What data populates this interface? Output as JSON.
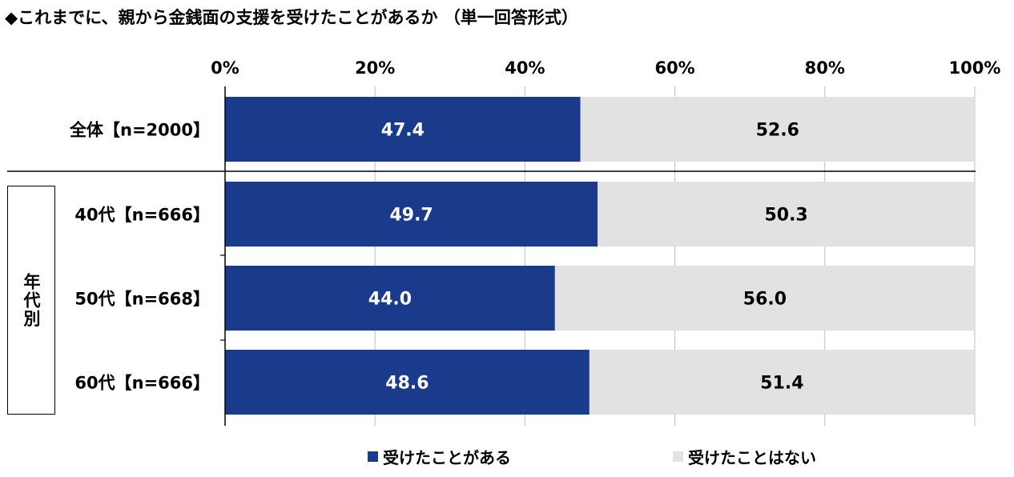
{
  "title": "◆これまでに、親から金銭面の支援を受けたことがあるか （単一回答形式）",
  "group_label": "年代別",
  "chart_data": {
    "type": "bar",
    "orientation": "horizontal",
    "stacked": "100%",
    "categories": [
      "全体【n=2000】",
      "40代【n=666】",
      "50代【n=668】",
      "60代【n=666】"
    ],
    "series": [
      {
        "name": "受けたことがある",
        "values": [
          47.4,
          49.7,
          44.0,
          48.6
        ],
        "color": "#1a3a8c",
        "label_color": "#ffffff"
      },
      {
        "name": "受けたことはない",
        "values": [
          52.6,
          50.3,
          56.0,
          51.4
        ],
        "color": "#e2e2e2",
        "label_color": "#000000"
      }
    ],
    "value_labels": [
      [
        "47.4",
        "49.7",
        "44.0",
        "48.6"
      ],
      [
        "52.6",
        "50.3",
        "56.0",
        "51.4"
      ]
    ],
    "xlim": [
      0,
      100
    ],
    "xticks": [
      "0%",
      "20%",
      "40%",
      "60%",
      "80%",
      "100%"
    ],
    "xtick_values": [
      0,
      20,
      40,
      60,
      80,
      100
    ],
    "grid": true,
    "legend_position": "bottom"
  }
}
